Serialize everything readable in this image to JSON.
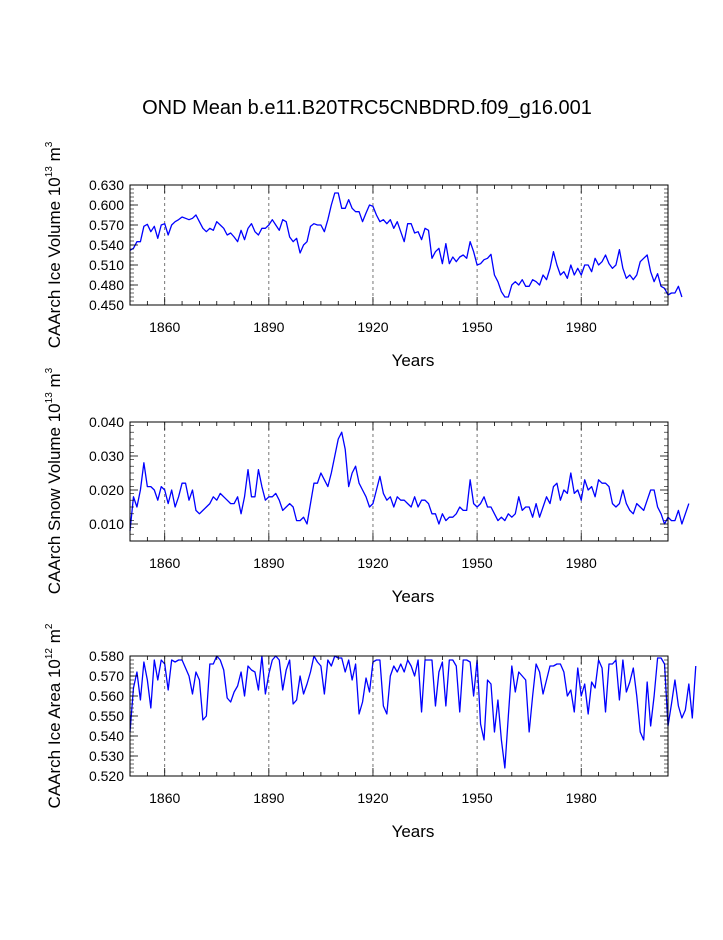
{
  "title": "OND Mean b.e11.B20TRC5CNBDRD.f09_g16.001",
  "colors": {
    "series": "#0000ff",
    "axis": "#000000",
    "grid": "#555555"
  },
  "chart_data": [
    {
      "type": "line",
      "ylabel": {
        "prefix": "CAArch Ice Volume 10",
        "exp": "13",
        "unit": " m",
        "unit_exp": "3"
      },
      "xlabel": "Years",
      "xlim": [
        1850,
        2005
      ],
      "ylim": [
        0.45,
        0.63
      ],
      "xticks": [
        1860,
        1890,
        1920,
        1950,
        1980
      ],
      "yticks": [
        0.45,
        0.48,
        0.51,
        0.54,
        0.57,
        0.6,
        0.63
      ],
      "ytick_labels": [
        "0.450",
        "0.480",
        "0.510",
        "0.540",
        "0.570",
        "0.600",
        "0.630"
      ],
      "series": [
        {
          "name": "CAArch Ice Volume",
          "x_start": 1850,
          "values": [
            0.532,
            0.535,
            0.545,
            0.545,
            0.568,
            0.571,
            0.56,
            0.568,
            0.55,
            0.57,
            0.572,
            0.555,
            0.57,
            0.575,
            0.578,
            0.582,
            0.58,
            0.578,
            0.58,
            0.585,
            0.575,
            0.565,
            0.56,
            0.565,
            0.562,
            0.575,
            0.57,
            0.565,
            0.555,
            0.558,
            0.552,
            0.545,
            0.562,
            0.548,
            0.565,
            0.572,
            0.56,
            0.555,
            0.565,
            0.565,
            0.57,
            0.578,
            0.57,
            0.562,
            0.578,
            0.575,
            0.552,
            0.545,
            0.55,
            0.528,
            0.54,
            0.545,
            0.568,
            0.572,
            0.57,
            0.57,
            0.56,
            0.578,
            0.6,
            0.618,
            0.618,
            0.595,
            0.595,
            0.608,
            0.595,
            0.59,
            0.59,
            0.575,
            0.588,
            0.6,
            0.598,
            0.585,
            0.575,
            0.578,
            0.572,
            0.578,
            0.565,
            0.575,
            0.56,
            0.545,
            0.572,
            0.572,
            0.558,
            0.56,
            0.548,
            0.565,
            0.562,
            0.52,
            0.53,
            0.535,
            0.512,
            0.542,
            0.512,
            0.522,
            0.515,
            0.522,
            0.525,
            0.52,
            0.545,
            0.53,
            0.51,
            0.512,
            0.518,
            0.52,
            0.526,
            0.495,
            0.485,
            0.47,
            0.462,
            0.462,
            0.48,
            0.485,
            0.48,
            0.488,
            0.478,
            0.478,
            0.488,
            0.485,
            0.48,
            0.495,
            0.488,
            0.505,
            0.53,
            0.51,
            0.495,
            0.5,
            0.49,
            0.51,
            0.495,
            0.505,
            0.495,
            0.51,
            0.51,
            0.5,
            0.52,
            0.51,
            0.515,
            0.525,
            0.512,
            0.505,
            0.51,
            0.533,
            0.505,
            0.49,
            0.495,
            0.488,
            0.495,
            0.515,
            0.52,
            0.525,
            0.5,
            0.485,
            0.497,
            0.478,
            0.475,
            0.465,
            0.468,
            0.468,
            0.478,
            0.462
          ]
        }
      ]
    },
    {
      "type": "line",
      "ylabel": {
        "prefix": "CAArch Snow Volume 10",
        "exp": "13",
        "unit": " m",
        "unit_exp": "3"
      },
      "xlabel": "Years",
      "xlim": [
        1850,
        2005
      ],
      "ylim": [
        0.005,
        0.04
      ],
      "xticks": [
        1860,
        1890,
        1920,
        1950,
        1980
      ],
      "yticks": [
        0.01,
        0.02,
        0.03,
        0.04
      ],
      "ytick_labels": [
        "0.010",
        "0.020",
        "0.030",
        "0.040"
      ],
      "series": [
        {
          "name": "CAArch Snow Volume",
          "x_start": 1850,
          "values": [
            0.008,
            0.018,
            0.015,
            0.02,
            0.028,
            0.021,
            0.021,
            0.02,
            0.017,
            0.021,
            0.02,
            0.016,
            0.02,
            0.015,
            0.018,
            0.022,
            0.022,
            0.017,
            0.02,
            0.014,
            0.013,
            0.014,
            0.015,
            0.016,
            0.018,
            0.017,
            0.019,
            0.018,
            0.017,
            0.016,
            0.016,
            0.018,
            0.013,
            0.018,
            0.026,
            0.018,
            0.018,
            0.026,
            0.021,
            0.017,
            0.018,
            0.018,
            0.019,
            0.017,
            0.014,
            0.015,
            0.016,
            0.015,
            0.011,
            0.011,
            0.012,
            0.01,
            0.016,
            0.022,
            0.022,
            0.025,
            0.023,
            0.021,
            0.025,
            0.03,
            0.035,
            0.037,
            0.032,
            0.021,
            0.025,
            0.027,
            0.022,
            0.02,
            0.018,
            0.015,
            0.016,
            0.02,
            0.024,
            0.019,
            0.017,
            0.018,
            0.015,
            0.018,
            0.017,
            0.017,
            0.016,
            0.015,
            0.018,
            0.015,
            0.017,
            0.017,
            0.016,
            0.013,
            0.013,
            0.01,
            0.013,
            0.011,
            0.012,
            0.012,
            0.013,
            0.015,
            0.014,
            0.014,
            0.023,
            0.016,
            0.015,
            0.016,
            0.018,
            0.015,
            0.015,
            0.013,
            0.011,
            0.012,
            0.011,
            0.013,
            0.012,
            0.013,
            0.018,
            0.014,
            0.015,
            0.015,
            0.012,
            0.016,
            0.012,
            0.015,
            0.018,
            0.016,
            0.021,
            0.022,
            0.017,
            0.02,
            0.019,
            0.025,
            0.019,
            0.02,
            0.017,
            0.023,
            0.02,
            0.021,
            0.018,
            0.023,
            0.022,
            0.022,
            0.021,
            0.016,
            0.015,
            0.016,
            0.02,
            0.016,
            0.014,
            0.013,
            0.016,
            0.015,
            0.014,
            0.017,
            0.02,
            0.02,
            0.015,
            0.013,
            0.01,
            0.012,
            0.011,
            0.011,
            0.014,
            0.01,
            0.013,
            0.016
          ]
        }
      ]
    },
    {
      "type": "line",
      "ylabel": {
        "prefix": "CAArch Ice Area 10",
        "exp": "12",
        "unit": " m",
        "unit_exp": "2"
      },
      "xlabel": "Years",
      "xlim": [
        1850,
        2005
      ],
      "ylim": [
        0.52,
        0.58
      ],
      "xticks": [
        1860,
        1890,
        1920,
        1950,
        1980
      ],
      "yticks": [
        0.52,
        0.53,
        0.54,
        0.55,
        0.56,
        0.57,
        0.58
      ],
      "ytick_labels": [
        "0.520",
        "0.530",
        "0.540",
        "0.550",
        "0.560",
        "0.570",
        "0.580"
      ],
      "series": [
        {
          "name": "CAArch Ice Area",
          "x_start": 1850,
          "values": [
            0.542,
            0.564,
            0.572,
            0.558,
            0.577,
            0.568,
            0.554,
            0.578,
            0.568,
            0.578,
            0.576,
            0.563,
            0.578,
            0.577,
            0.578,
            0.578,
            0.574,
            0.57,
            0.561,
            0.572,
            0.568,
            0.548,
            0.55,
            0.576,
            0.576,
            0.58,
            0.578,
            0.573,
            0.559,
            0.557,
            0.562,
            0.565,
            0.572,
            0.56,
            0.575,
            0.573,
            0.572,
            0.563,
            0.58,
            0.561,
            0.571,
            0.578,
            0.58,
            0.578,
            0.563,
            0.573,
            0.578,
            0.556,
            0.558,
            0.57,
            0.561,
            0.566,
            0.572,
            0.58,
            0.577,
            0.575,
            0.561,
            0.578,
            0.575,
            0.58,
            0.579,
            0.579,
            0.572,
            0.578,
            0.568,
            0.576,
            0.551,
            0.557,
            0.569,
            0.562,
            0.577,
            0.578,
            0.578,
            0.555,
            0.551,
            0.57,
            0.575,
            0.572,
            0.576,
            0.572,
            0.578,
            0.575,
            0.57,
            0.578,
            0.552,
            0.578,
            0.578,
            0.578,
            0.555,
            0.572,
            0.577,
            0.555,
            0.578,
            0.578,
            0.575,
            0.552,
            0.578,
            0.578,
            0.577,
            0.56,
            0.578,
            0.546,
            0.538,
            0.568,
            0.566,
            0.542,
            0.558,
            0.538,
            0.524,
            0.55,
            0.575,
            0.562,
            0.572,
            0.57,
            0.568,
            0.542,
            0.56,
            0.576,
            0.572,
            0.561,
            0.568,
            0.575,
            0.575,
            0.576,
            0.576,
            0.572,
            0.56,
            0.563,
            0.552,
            0.574,
            0.56,
            0.566,
            0.551,
            0.567,
            0.564,
            0.578,
            0.574,
            0.552,
            0.576,
            0.576,
            0.578,
            0.558,
            0.578,
            0.562,
            0.567,
            0.574,
            0.56,
            0.542,
            0.538,
            0.567,
            0.545,
            0.56,
            0.579,
            0.579,
            0.576,
            0.545,
            0.556,
            0.568,
            0.555,
            0.549,
            0.553,
            0.566,
            0.549,
            0.575
          ]
        }
      ]
    }
  ]
}
